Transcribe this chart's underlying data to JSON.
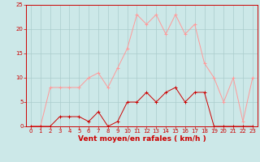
{
  "x": [
    0,
    1,
    2,
    3,
    4,
    5,
    6,
    7,
    8,
    9,
    10,
    11,
    12,
    13,
    14,
    15,
    16,
    17,
    18,
    19,
    20,
    21,
    22,
    23
  ],
  "wind_avg": [
    0,
    0,
    0,
    2,
    2,
    2,
    1,
    3,
    0,
    1,
    5,
    5,
    7,
    5,
    7,
    8,
    5,
    7,
    7,
    0,
    0,
    0,
    0,
    0
  ],
  "wind_gust": [
    0,
    0,
    8,
    8,
    8,
    8,
    10,
    11,
    8,
    12,
    16,
    23,
    21,
    23,
    19,
    23,
    19,
    21,
    13,
    10,
    5,
    10,
    1,
    10
  ],
  "bg_color": "#cce8e8",
  "grid_color": "#aacccc",
  "line_avg_color": "#cc0000",
  "line_gust_color": "#ff9999",
  "xlabel": "Vent moyen/en rafales ( km/h )",
  "ylim": [
    0,
    25
  ],
  "xlim_min": -0.5,
  "xlim_max": 23.5,
  "yticks": [
    0,
    5,
    10,
    15,
    20,
    25
  ],
  "xticks": [
    0,
    1,
    2,
    3,
    4,
    5,
    6,
    7,
    8,
    9,
    10,
    11,
    12,
    13,
    14,
    15,
    16,
    17,
    18,
    19,
    20,
    21,
    22,
    23
  ],
  "tick_fontsize": 5,
  "xlabel_fontsize": 6.5
}
